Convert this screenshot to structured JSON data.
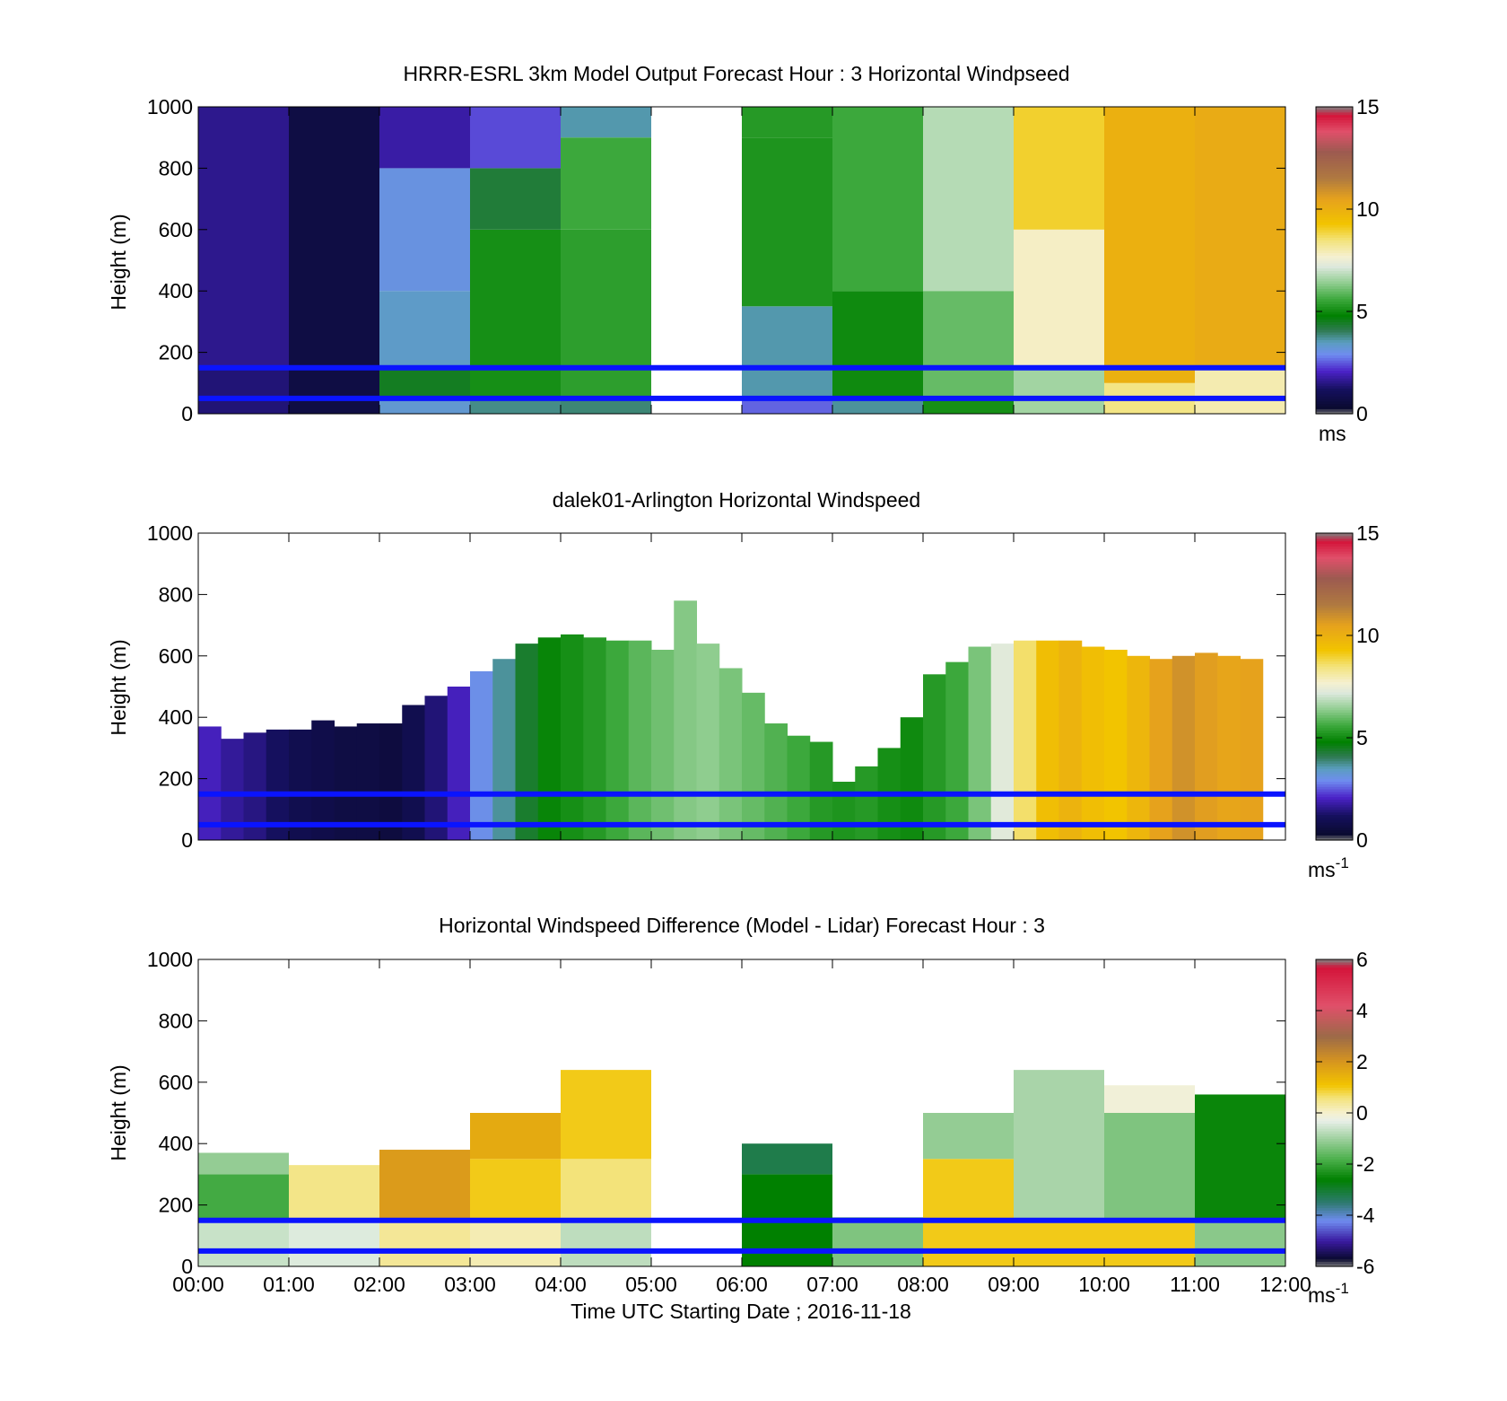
{
  "figure": {
    "x_ticks": [
      "00:00",
      "01:00",
      "02:00",
      "03:00",
      "04:00",
      "05:00",
      "06:00",
      "07:00",
      "08:00",
      "09:00",
      "10:00",
      "11:00",
      "12:00"
    ],
    "xlabel": "Time UTC  Starting Date ; 2016-11-18"
  },
  "chart_data": [
    {
      "type": "heatmap",
      "title": "HRRR-ESRL 3km Model Output   Forecast Hour : 3 Horizontal Windpseed",
      "ylabel": "Height (m)",
      "ylim": [
        0,
        1000
      ],
      "yticks": [
        0,
        200,
        400,
        600,
        800,
        1000
      ],
      "xlim": [
        "00:00",
        "12:00"
      ],
      "colorbar": {
        "range": [
          0,
          15
        ],
        "ticks": [
          0,
          5,
          10,
          15
        ],
        "unit": "ms",
        "unit_sup": ""
      },
      "reference_lines_m": [
        50,
        150
      ],
      "reference_line_color": "#0a14ff",
      "columns": [
        {
          "start": "00:00",
          "end": "01:00",
          "segments": [
            [
              0,
              150,
              1.4
            ],
            [
              150,
              1000,
              1.6
            ]
          ]
        },
        {
          "start": "01:00",
          "end": "02:00",
          "segments": [
            [
              0,
              1000,
              0.7
            ]
          ]
        },
        {
          "start": "02:00",
          "end": "03:00",
          "segments": [
            [
              0,
              50,
              3.3
            ],
            [
              50,
              150,
              4.5
            ],
            [
              150,
              400,
              3.4
            ],
            [
              400,
              800,
              3.1
            ],
            [
              800,
              1000,
              1.8
            ]
          ]
        },
        {
          "start": "03:00",
          "end": "04:00",
          "segments": [
            [
              0,
              50,
              3.8
            ],
            [
              50,
              600,
              5.1
            ],
            [
              600,
              800,
              4.3
            ],
            [
              800,
              1000,
              2.4
            ]
          ]
        },
        {
          "start": "04:00",
          "end": "05:00",
          "segments": [
            [
              0,
              50,
              3.9
            ],
            [
              50,
              600,
              5.4
            ],
            [
              600,
              900,
              5.6
            ],
            [
              900,
              1000,
              3.6
            ]
          ]
        },
        {
          "start": "06:00",
          "end": "07:00",
          "segments": [
            [
              0,
              50,
              2.6
            ],
            [
              50,
              350,
              3.6
            ],
            [
              350,
              900,
              5.2
            ],
            [
              900,
              1000,
              5.3
            ]
          ]
        },
        {
          "start": "07:00",
          "end": "08:00",
          "segments": [
            [
              0,
              50,
              3.7
            ],
            [
              50,
              400,
              5.0
            ],
            [
              400,
              1000,
              5.6
            ]
          ]
        },
        {
          "start": "08:00",
          "end": "09:00",
          "segments": [
            [
              0,
              50,
              5.1
            ],
            [
              50,
              400,
              6.0
            ],
            [
              400,
              1000,
              6.8
            ]
          ]
        },
        {
          "start": "09:00",
          "end": "10:00",
          "segments": [
            [
              0,
              150,
              6.6
            ],
            [
              150,
              600,
              7.8
            ],
            [
              600,
              1000,
              9.0
            ]
          ]
        },
        {
          "start": "10:00",
          "end": "11:00",
          "segments": [
            [
              0,
              100,
              8.4
            ],
            [
              100,
              1000,
              10.0
            ]
          ]
        },
        {
          "start": "11:00",
          "end": "12:00",
          "segments": [
            [
              0,
              150,
              8.0
            ],
            [
              150,
              1000,
              10.2
            ]
          ]
        }
      ]
    },
    {
      "type": "heatmap",
      "title": "dalek01-Arlington  Horizontal Windspeed",
      "ylabel": "Height (m)",
      "ylim": [
        0,
        1000
      ],
      "yticks": [
        0,
        200,
        400,
        600,
        800,
        1000
      ],
      "xlim": [
        "00:00",
        "12:00"
      ],
      "colorbar": {
        "range": [
          0,
          15
        ],
        "ticks": [
          0,
          5,
          10,
          15
        ],
        "unit": "ms",
        "unit_sup": "-1"
      },
      "reference_lines_m": [
        50,
        150
      ],
      "reference_line_color": "#0a14ff",
      "profiles": [
        {
          "t": "00:00",
          "top": 370,
          "speed": 2.0
        },
        {
          "t": "00:15",
          "top": 330,
          "speed": 1.7
        },
        {
          "t": "00:30",
          "top": 350,
          "speed": 1.5
        },
        {
          "t": "00:45",
          "top": 360,
          "speed": 1.2
        },
        {
          "t": "01:00",
          "top": 360,
          "speed": 0.9
        },
        {
          "t": "01:15",
          "top": 390,
          "speed": 0.8
        },
        {
          "t": "01:30",
          "top": 370,
          "speed": 0.7
        },
        {
          "t": "01:45",
          "top": 380,
          "speed": 0.7
        },
        {
          "t": "02:00",
          "top": 380,
          "speed": 0.6
        },
        {
          "t": "02:15",
          "top": 440,
          "speed": 0.9
        },
        {
          "t": "02:30",
          "top": 470,
          "speed": 1.4
        },
        {
          "t": "02:45",
          "top": 500,
          "speed": 2.0
        },
        {
          "t": "03:00",
          "top": 550,
          "speed": 3.0
        },
        {
          "t": "03:15",
          "top": 590,
          "speed": 3.7
        },
        {
          "t": "03:30",
          "top": 640,
          "speed": 4.4
        },
        {
          "t": "03:45",
          "top": 660,
          "speed": 4.9
        },
        {
          "t": "04:00",
          "top": 670,
          "speed": 5.1
        },
        {
          "t": "04:15",
          "top": 660,
          "speed": 5.3
        },
        {
          "t": "04:30",
          "top": 650,
          "speed": 5.6
        },
        {
          "t": "04:45",
          "top": 650,
          "speed": 5.9
        },
        {
          "t": "05:00",
          "top": 620,
          "speed": 6.1
        },
        {
          "t": "05:15",
          "top": 780,
          "speed": 6.3
        },
        {
          "t": "05:30",
          "top": 640,
          "speed": 6.4
        },
        {
          "t": "05:45",
          "top": 560,
          "speed": 6.2
        },
        {
          "t": "06:00",
          "top": 480,
          "speed": 6.0
        },
        {
          "t": "06:15",
          "top": 380,
          "speed": 5.8
        },
        {
          "t": "06:30",
          "top": 340,
          "speed": 5.6
        },
        {
          "t": "06:45",
          "top": 320,
          "speed": 5.3
        },
        {
          "t": "07:00",
          "top": 190,
          "speed": 5.2
        },
        {
          "t": "07:15",
          "top": 240,
          "speed": 5.3
        },
        {
          "t": "07:30",
          "top": 300,
          "speed": 5.1
        },
        {
          "t": "07:45",
          "top": 400,
          "speed": 5.0
        },
        {
          "t": "08:00",
          "top": 540,
          "speed": 5.3
        },
        {
          "t": "08:15",
          "top": 580,
          "speed": 5.6
        },
        {
          "t": "08:30",
          "top": 630,
          "speed": 6.2
        },
        {
          "t": "08:45",
          "top": 640,
          "speed": 7.3
        },
        {
          "t": "09:00",
          "top": 650,
          "speed": 8.6
        },
        {
          "t": "09:15",
          "top": 650,
          "speed": 9.5
        },
        {
          "t": "09:30",
          "top": 650,
          "speed": 9.9
        },
        {
          "t": "09:45",
          "top": 630,
          "speed": 9.5
        },
        {
          "t": "10:00",
          "top": 620,
          "speed": 9.3
        },
        {
          "t": "10:15",
          "top": 600,
          "speed": 9.8
        },
        {
          "t": "10:30",
          "top": 590,
          "speed": 10.5
        },
        {
          "t": "10:45",
          "top": 600,
          "speed": 10.9
        },
        {
          "t": "11:00",
          "top": 610,
          "speed": 10.6
        },
        {
          "t": "11:15",
          "top": 600,
          "speed": 10.4
        },
        {
          "t": "11:30",
          "top": 590,
          "speed": 10.5
        }
      ]
    },
    {
      "type": "heatmap",
      "title": "Horizontal Windspeed Difference (Model - Lidar) Forecast Hour : 3",
      "ylabel": "Height (m)",
      "ylim": [
        0,
        1000
      ],
      "yticks": [
        0,
        200,
        400,
        600,
        800,
        1000
      ],
      "xlim": [
        "00:00",
        "12:00"
      ],
      "colorbar": {
        "range": [
          -6,
          6
        ],
        "ticks": [
          -6,
          -4,
          -2,
          0,
          2,
          4,
          6
        ],
        "unit": "ms",
        "unit_sup": "-1"
      },
      "reference_lines_m": [
        50,
        150
      ],
      "reference_line_color": "#0a14ff",
      "columns": [
        {
          "start": "00:00",
          "end": "01:00",
          "segments": [
            [
              0,
              150,
              -0.6
            ],
            [
              150,
              300,
              -1.9
            ],
            [
              300,
              370,
              -1.1
            ]
          ]
        },
        {
          "start": "01:00",
          "end": "02:00",
          "segments": [
            [
              0,
              150,
              -0.4
            ],
            [
              150,
              330,
              0.5
            ]
          ]
        },
        {
          "start": "02:00",
          "end": "03:00",
          "segments": [
            [
              0,
              150,
              0.4
            ],
            [
              150,
              380,
              1.9
            ]
          ]
        },
        {
          "start": "03:00",
          "end": "04:00",
          "segments": [
            [
              0,
              150,
              0.2
            ],
            [
              150,
              350,
              1.0
            ],
            [
              350,
              500,
              1.6
            ]
          ]
        },
        {
          "start": "04:00",
          "end": "05:00",
          "segments": [
            [
              0,
              150,
              -0.7
            ],
            [
              150,
              350,
              0.6
            ],
            [
              350,
              640,
              1.0
            ]
          ]
        },
        {
          "start": "06:00",
          "end": "07:00",
          "segments": [
            [
              0,
              300,
              -2.6
            ],
            [
              300,
              400,
              -3.2
            ]
          ]
        },
        {
          "start": "07:00",
          "end": "08:00",
          "segments": [
            [
              0,
              160,
              -1.3
            ]
          ]
        },
        {
          "start": "08:00",
          "end": "09:00",
          "segments": [
            [
              0,
              350,
              1.0
            ],
            [
              350,
              500,
              -1.1
            ]
          ]
        },
        {
          "start": "09:00",
          "end": "10:00",
          "segments": [
            [
              0,
              150,
              1.0
            ],
            [
              150,
              640,
              -0.9
            ]
          ]
        },
        {
          "start": "10:00",
          "end": "11:00",
          "segments": [
            [
              0,
              150,
              1.0
            ],
            [
              150,
              500,
              -1.3
            ],
            [
              500,
              590,
              -0.1
            ]
          ]
        },
        {
          "start": "11:00",
          "end": "12:00",
          "segments": [
            [
              0,
              150,
              -1.2
            ],
            [
              150,
              560,
              -2.5
            ]
          ]
        }
      ]
    }
  ]
}
